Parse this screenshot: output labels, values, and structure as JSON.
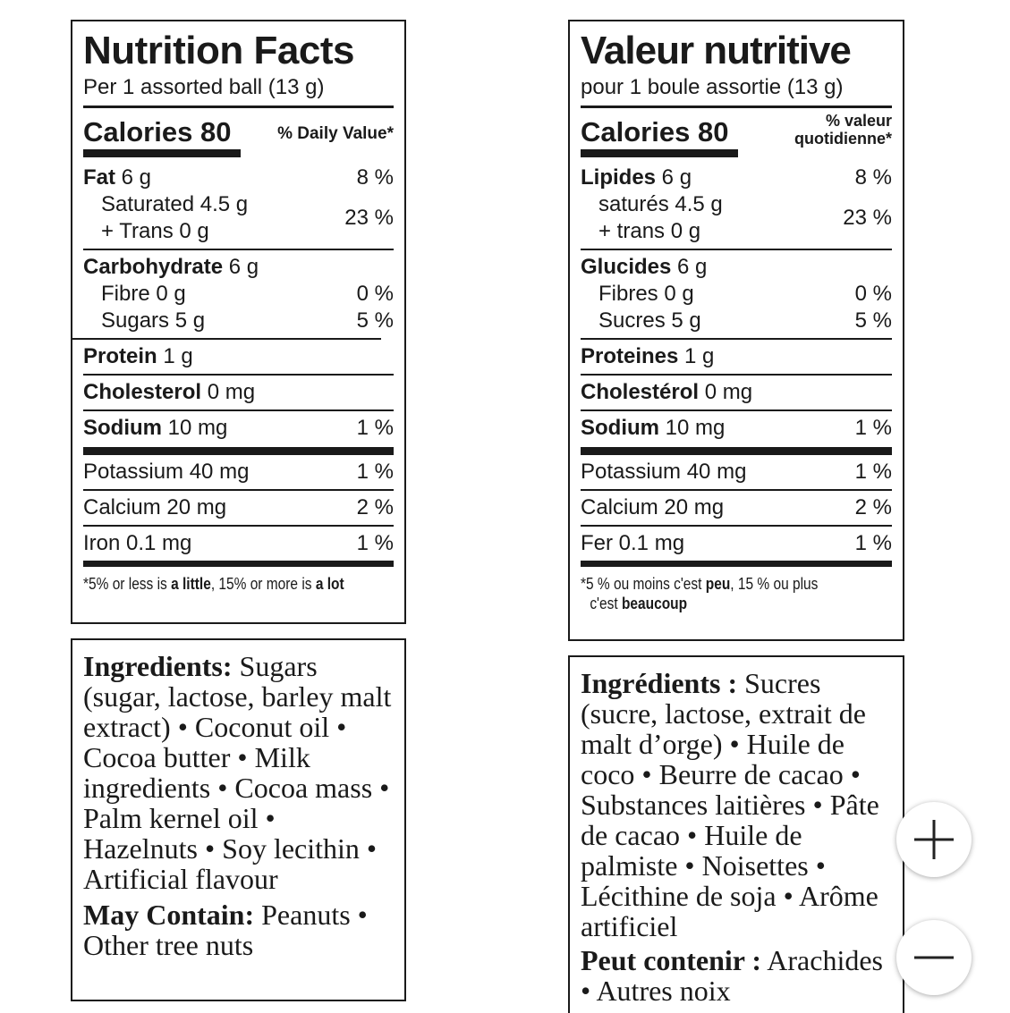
{
  "en": {
    "title": "Nutrition Facts",
    "serving": "Per 1 assorted ball (13 g)",
    "calories": "Calories 80",
    "dv_header": "% Daily Value*",
    "fat_label": "Fat",
    "fat_amount": " 6 g",
    "fat_pct": "8 %",
    "saturated": "Saturated 4.5 g",
    "trans": "+ Trans 0 g",
    "sat_pct": "23 %",
    "carb_label": "Carbohydrate",
    "carb_amount": " 6 g",
    "fibre": "Fibre 0 g",
    "fibre_pct": "0 %",
    "sugars": "Sugars 5 g",
    "sugars_pct": "5 %",
    "protein_label": "Protein",
    "protein_amount": " 1 g",
    "chol_label": "Cholesterol",
    "chol_amount": " 0 mg",
    "sodium_label": "Sodium",
    "sodium_amount": " 10 mg",
    "sodium_pct": "1 %",
    "potassium": "Potassium 40 mg",
    "potassium_pct": "1 %",
    "calcium": "Calcium 20 mg",
    "calcium_pct": "2 %",
    "iron": "Iron 0.1 mg",
    "iron_pct": "1 %",
    "foot_a": "*5% or less is ",
    "foot_b": "a little",
    "foot_c": ", 15% or more is ",
    "foot_d": "a lot",
    "ing_label": "Ingredients:",
    "ing_text": " Sugars (sugar, lactose, barley malt extract) • Coconut oil • Cocoa butter • Milk ingredients • Cocoa mass • Palm kernel oil • Hazelnuts • Soy lecithin • Artificial flavour",
    "may_label": "May Contain:",
    "may_text": " Peanuts • Other tree nuts"
  },
  "fr": {
    "title": "Valeur nutritive",
    "serving": "pour 1 boule assortie (13 g)",
    "calories": "Calories 80",
    "dv_header_1": "% valeur",
    "dv_header_2": "quotidienne*",
    "fat_label": "Lipides",
    "fat_amount": " 6 g",
    "fat_pct": "8 %",
    "saturated": "saturés 4.5 g",
    "trans": "+ trans 0 g",
    "sat_pct": "23 %",
    "carb_label": "Glucides",
    "carb_amount": " 6 g",
    "fibre": "Fibres 0 g",
    "fibre_pct": "0 %",
    "sugars": "Sucres 5 g",
    "sugars_pct": "5 %",
    "protein_label": "Proteines",
    "protein_amount": " 1 g",
    "chol_label": "Cholestérol",
    "chol_amount": " 0 mg",
    "sodium_label": "Sodium",
    "sodium_amount": " 10 mg",
    "sodium_pct": "1 %",
    "potassium": "Potassium 40 mg",
    "potassium_pct": "1 %",
    "calcium": "Calcium 20 mg",
    "calcium_pct": "2 %",
    "iron": "Fer 0.1 mg",
    "iron_pct": "1 %",
    "foot_a": "*5 % ou moins c'est ",
    "foot_b": "peu",
    "foot_c": ", 15 % ou plus",
    "foot_d_pre": "c'est ",
    "foot_d": "beaucoup",
    "ing_label": "Ingrédients :",
    "ing_text": " Sucres (sucre, lactose, extrait de malt d’orge) • Huile de coco • Beurre de cacao • Substances laitières • Pâte de cacao • Huile de palmiste • Noisettes • Lécithine de soja • Arôme artificiel",
    "may_label": "Peut contenir :",
    "may_text": " Arachides • Autres noix"
  },
  "controls": {
    "zoom_in_icon": "plus-icon",
    "zoom_out_icon": "minus-icon"
  }
}
